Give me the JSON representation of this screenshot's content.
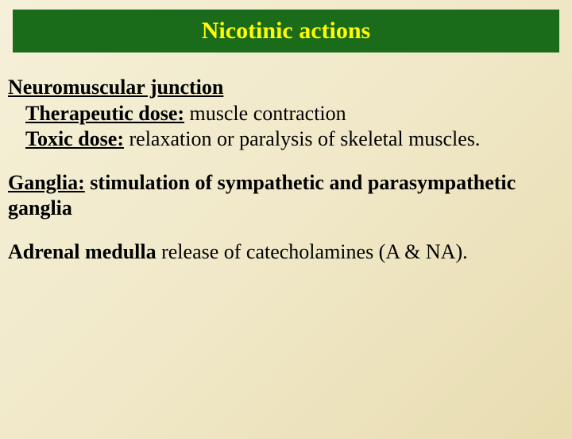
{
  "title": "Nicotinic actions",
  "sections": {
    "nmj": {
      "heading": "Neuromuscular junction",
      "therapeutic_label": "Therapeutic dose:",
      "therapeutic_text": " muscle contraction",
      "toxic_label": "Toxic dose:",
      "toxic_text": " relaxation or paralysis of skeletal muscles."
    },
    "ganglia": {
      "heading": "Ganglia:",
      "text": " stimulation of sympathetic and parasympathetic ganglia"
    },
    "adrenal": {
      "heading": "Adrenal medulla",
      "text": "  release of catecholamines (A & NA)."
    }
  },
  "style": {
    "title_bg": "#1a6b1a",
    "title_color": "#ffff00",
    "body_gradient_start": "#f5f0d8",
    "body_gradient_end": "#e8dcb0",
    "text_color": "#000000",
    "title_fontsize": 30,
    "body_fontsize": 26
  }
}
